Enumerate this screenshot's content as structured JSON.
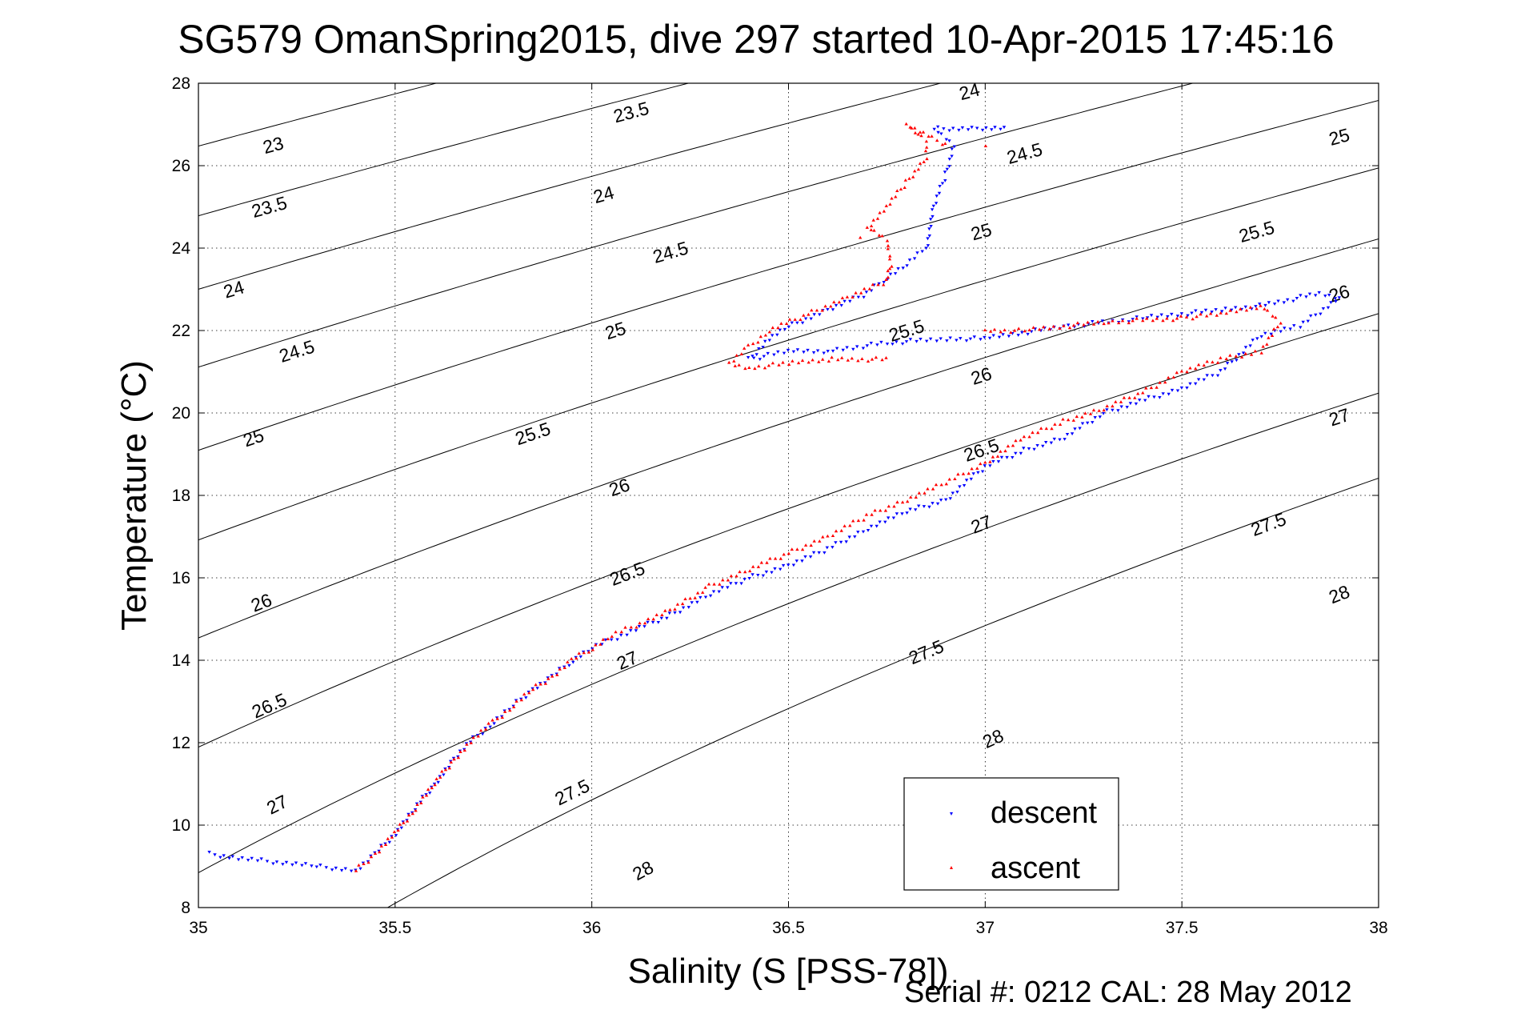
{
  "chart_data": {
    "type": "scatter",
    "title": "SG579 OmanSpring2015, dive 297 started 10-Apr-2015 17:45:16",
    "xlabel": "Salinity (S [PSS-78])",
    "ylabel": "Temperature (°C)",
    "xlim": [
      35,
      38
    ],
    "ylim": [
      8,
      28
    ],
    "xticks": [
      35,
      35.5,
      36,
      36.5,
      37,
      37.5,
      38
    ],
    "yticks": [
      8,
      10,
      12,
      14,
      16,
      18,
      20,
      22,
      24,
      26,
      28
    ],
    "grid": true,
    "legend_position": "bottom-right",
    "density_contours": [
      23,
      23.5,
      24,
      24.5,
      25,
      25.5,
      26,
      26.5,
      27,
      27.5,
      28
    ],
    "contour_labels": [
      {
        "text": "23",
        "s": 35.19,
        "t": 26.5
      },
      {
        "text": "23.5",
        "s": 36.1,
        "t": 27.3
      },
      {
        "text": "23.5",
        "s": 35.18,
        "t": 25.0
      },
      {
        "text": "24",
        "s": 36.03,
        "t": 25.3
      },
      {
        "text": "24",
        "s": 36.96,
        "t": 27.8
      },
      {
        "text": "24",
        "s": 35.09,
        "t": 23.0
      },
      {
        "text": "24.5",
        "s": 36.2,
        "t": 23.9
      },
      {
        "text": "24.5",
        "s": 37.1,
        "t": 26.3
      },
      {
        "text": "24.5",
        "s": 35.25,
        "t": 21.5
      },
      {
        "text": "25",
        "s": 36.06,
        "t": 22.0
      },
      {
        "text": "25",
        "s": 36.99,
        "t": 24.4
      },
      {
        "text": "25",
        "s": 37.9,
        "t": 26.7
      },
      {
        "text": "25",
        "s": 35.14,
        "t": 19.4
      },
      {
        "text": "25.5",
        "s": 35.85,
        "t": 19.5
      },
      {
        "text": "25.5",
        "s": 36.8,
        "t": 22.0
      },
      {
        "text": "25.5",
        "s": 37.69,
        "t": 24.4
      },
      {
        "text": "26",
        "s": 36.07,
        "t": 18.2
      },
      {
        "text": "26",
        "s": 36.99,
        "t": 20.9
      },
      {
        "text": "26",
        "s": 37.9,
        "t": 22.9
      },
      {
        "text": "26",
        "s": 35.16,
        "t": 15.4
      },
      {
        "text": "26.5",
        "s": 36.09,
        "t": 16.1
      },
      {
        "text": "26.5",
        "s": 36.99,
        "t": 19.1
      },
      {
        "text": "26.5",
        "s": 35.18,
        "t": 12.9
      },
      {
        "text": "27",
        "s": 36.09,
        "t": 14.0
      },
      {
        "text": "27",
        "s": 36.99,
        "t": 17.3
      },
      {
        "text": "27",
        "s": 37.9,
        "t": 19.9
      },
      {
        "text": "27",
        "s": 35.2,
        "t": 10.5
      },
      {
        "text": "27.5",
        "s": 35.95,
        "t": 10.8
      },
      {
        "text": "27.5",
        "s": 36.85,
        "t": 14.2
      },
      {
        "text": "27.5",
        "s": 37.72,
        "t": 17.3
      },
      {
        "text": "28",
        "s": 36.13,
        "t": 8.9
      },
      {
        "text": "28",
        "s": 37.02,
        "t": 12.1
      },
      {
        "text": "28",
        "s": 37.9,
        "t": 15.6
      }
    ],
    "series": [
      {
        "name": "descent",
        "color": "#0000ff",
        "marker": "triangle-down",
        "points": [
          [
            35.03,
            9.3
          ],
          [
            35.1,
            9.2
          ],
          [
            35.3,
            9.0
          ],
          [
            35.4,
            8.9
          ],
          [
            35.45,
            9.3
          ],
          [
            35.5,
            9.8
          ],
          [
            35.55,
            10.4
          ],
          [
            35.6,
            11.0
          ],
          [
            35.65,
            11.6
          ],
          [
            35.7,
            12.1
          ],
          [
            35.75,
            12.5
          ],
          [
            35.8,
            12.9
          ],
          [
            35.85,
            13.3
          ],
          [
            35.9,
            13.6
          ],
          [
            35.95,
            14.0
          ],
          [
            36.0,
            14.3
          ],
          [
            36.05,
            14.5
          ],
          [
            36.1,
            14.7
          ],
          [
            36.2,
            15.1
          ],
          [
            36.3,
            15.6
          ],
          [
            36.4,
            16.0
          ],
          [
            36.5,
            16.3
          ],
          [
            36.6,
            16.7
          ],
          [
            36.7,
            17.2
          ],
          [
            36.8,
            17.6
          ],
          [
            36.9,
            17.9
          ],
          [
            37.0,
            18.7
          ],
          [
            37.1,
            19.1
          ],
          [
            37.2,
            19.4
          ],
          [
            37.3,
            20.0
          ],
          [
            37.5,
            20.6
          ],
          [
            37.6,
            21.0
          ],
          [
            37.7,
            21.9
          ],
          [
            37.8,
            22.1
          ],
          [
            37.9,
            22.8
          ],
          [
            37.85,
            22.9
          ],
          [
            37.7,
            22.6
          ],
          [
            37.6,
            22.5
          ],
          [
            37.4,
            22.3
          ],
          [
            37.2,
            22.1
          ],
          [
            37.0,
            21.8
          ],
          [
            36.9,
            21.8
          ],
          [
            36.75,
            21.7
          ],
          [
            36.6,
            21.5
          ],
          [
            36.5,
            21.5
          ],
          [
            36.4,
            21.3
          ],
          [
            36.45,
            21.8
          ],
          [
            36.5,
            22.1
          ],
          [
            36.6,
            22.5
          ],
          [
            36.7,
            22.9
          ],
          [
            36.75,
            23.3
          ],
          [
            36.8,
            23.6
          ],
          [
            36.85,
            24.0
          ],
          [
            36.87,
            25.0
          ],
          [
            36.9,
            25.8
          ],
          [
            36.92,
            26.5
          ],
          [
            36.87,
            26.9
          ],
          [
            36.98,
            26.9
          ],
          [
            37.05,
            26.9
          ]
        ]
      },
      {
        "name": "ascent",
        "color": "#ff0000",
        "marker": "triangle-up",
        "points": [
          [
            35.4,
            8.9
          ],
          [
            35.45,
            9.3
          ],
          [
            35.5,
            9.8
          ],
          [
            35.55,
            10.4
          ],
          [
            35.6,
            11.0
          ],
          [
            35.65,
            11.6
          ],
          [
            35.7,
            12.1
          ],
          [
            35.75,
            12.5
          ],
          [
            35.8,
            12.9
          ],
          [
            35.85,
            13.3
          ],
          [
            35.9,
            13.6
          ],
          [
            35.95,
            14.0
          ],
          [
            36.0,
            14.3
          ],
          [
            36.05,
            14.6
          ],
          [
            36.1,
            14.8
          ],
          [
            36.2,
            15.2
          ],
          [
            36.3,
            15.8
          ],
          [
            36.4,
            16.2
          ],
          [
            36.5,
            16.6
          ],
          [
            36.6,
            17.0
          ],
          [
            36.7,
            17.5
          ],
          [
            36.8,
            17.9
          ],
          [
            36.9,
            18.3
          ],
          [
            37.0,
            18.8
          ],
          [
            37.1,
            19.4
          ],
          [
            37.2,
            19.8
          ],
          [
            37.3,
            20.1
          ],
          [
            37.4,
            20.5
          ],
          [
            37.5,
            21.0
          ],
          [
            37.6,
            21.3
          ],
          [
            37.7,
            21.5
          ],
          [
            37.75,
            22.2
          ],
          [
            37.7,
            22.6
          ],
          [
            37.6,
            22.4
          ],
          [
            37.5,
            22.3
          ],
          [
            37.3,
            22.2
          ],
          [
            37.1,
            22.0
          ],
          [
            37.0,
            22.0
          ],
          [
            36.75,
            21.3
          ],
          [
            36.6,
            21.3
          ],
          [
            36.5,
            21.2
          ],
          [
            36.4,
            21.1
          ],
          [
            36.35,
            21.2
          ],
          [
            36.4,
            21.6
          ],
          [
            36.45,
            22.0
          ],
          [
            36.55,
            22.4
          ],
          [
            36.65,
            22.8
          ],
          [
            36.75,
            23.2
          ],
          [
            36.76,
            23.6
          ],
          [
            36.75,
            24.2
          ],
          [
            36.7,
            24.5
          ],
          [
            36.75,
            25.0
          ],
          [
            36.8,
            25.6
          ],
          [
            36.85,
            26.2
          ],
          [
            36.85,
            26.6
          ],
          [
            36.8,
            27.0
          ],
          [
            36.9,
            26.5
          ],
          [
            36.68,
            24.3
          ],
          [
            37.0,
            26.5
          ]
        ]
      }
    ],
    "footer": "Serial #: 0212  CAL: 28 May 2012"
  }
}
